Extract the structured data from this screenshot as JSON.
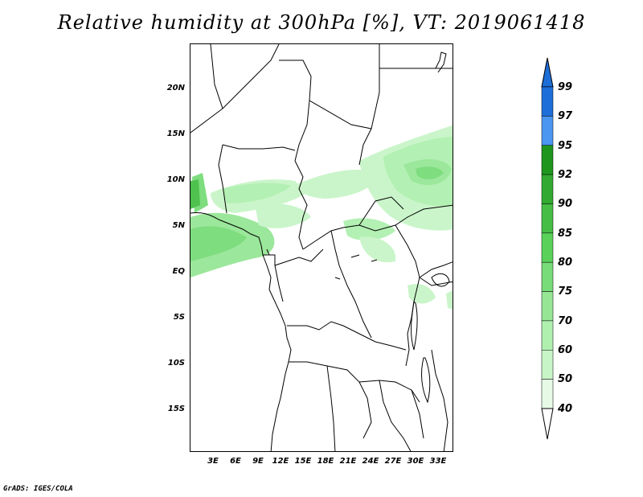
{
  "title": "Relative humidity at 300hPa [%], VT: 2019061418",
  "map": {
    "lat_labels": [
      "20N",
      "15N",
      "10N",
      "5N",
      "EQ",
      "5S",
      "10S",
      "15S"
    ],
    "lon_labels": [
      "3E",
      "6E",
      "9E",
      "12E",
      "15E",
      "18E",
      "21E",
      "24E",
      "27E",
      "30E",
      "33E"
    ]
  },
  "colorbar": {
    "labels": [
      "99",
      "97",
      "95",
      "92",
      "90",
      "85",
      "80",
      "75",
      "70",
      "60",
      "50",
      "40"
    ],
    "colors": [
      "#1e6ed8",
      "#4a96f0",
      "#1e961e",
      "#32aa32",
      "#46be46",
      "#5ad25a",
      "#78dc78",
      "#96e696",
      "#aff0af",
      "#c8f5c8",
      "#e6fae6"
    ],
    "arrow_top_color": "#1e6ed8",
    "arrow_bottom_color": "#ffffff"
  },
  "credit": "GrADS: IGES/COLA"
}
